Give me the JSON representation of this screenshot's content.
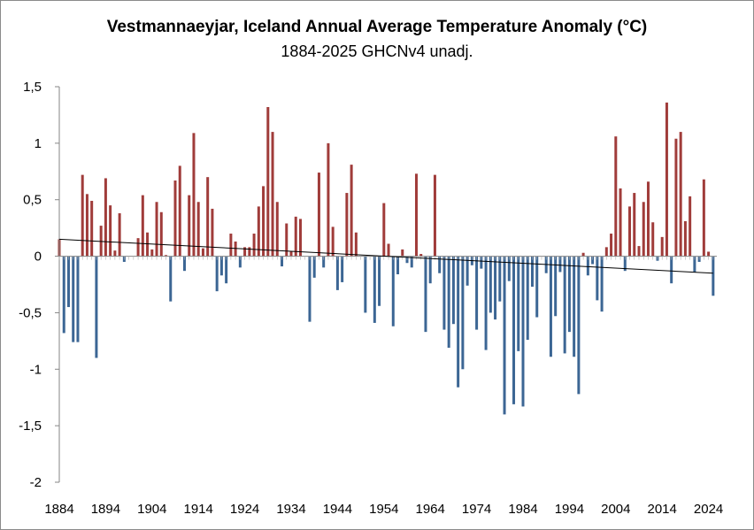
{
  "chart_data": {
    "type": "bar",
    "title": "Vestmannaeyjar, Iceland Annual Average Temperature Anomaly (°C)",
    "subtitle": "1884-2025 GHCNv4 unadj.",
    "xlabel": "",
    "ylabel": "",
    "ylim": [
      -2,
      1.5
    ],
    "y_ticks": [
      1.5,
      1,
      0.5,
      0,
      -0.5,
      -1,
      -1.5,
      -2
    ],
    "y_tick_labels": [
      "1,5",
      "1",
      "0,5",
      "0",
      "-0,5",
      "-1",
      "-1,5",
      "-2"
    ],
    "x_tick_years": [
      1884,
      1894,
      1904,
      1914,
      1924,
      1934,
      1944,
      1954,
      1964,
      1974,
      1984,
      1994,
      2004,
      2014,
      2024
    ],
    "x_tick_labels": [
      "1884",
      "1894",
      "1904",
      "1914",
      "1924",
      "1934",
      "1944",
      "1954",
      "1964",
      "1974",
      "1984",
      "1994",
      "2004",
      "2014",
      "2024"
    ],
    "grid": false,
    "legend": "none",
    "positive_color": "#a03c3a",
    "negative_color": "#3c6694",
    "trend_color": "#000000",
    "trend": {
      "start_year": 1884,
      "start_value": 0.15,
      "end_year": 2025,
      "end_value": -0.15
    },
    "series": [
      {
        "name": "Annual Average Temperature Anomaly",
        "start_year": 1884,
        "values": [
          0.15,
          -0.68,
          -0.45,
          -0.76,
          -0.76,
          0.72,
          0.55,
          0.49,
          -0.9,
          0.27,
          0.69,
          0.45,
          0.05,
          0.38,
          -0.05,
          0.0,
          0.0,
          0.16,
          0.54,
          0.21,
          0.06,
          0.48,
          0.39,
          0.01,
          -0.4,
          0.67,
          0.8,
          -0.13,
          0.54,
          1.09,
          0.48,
          0.07,
          0.7,
          0.42,
          -0.31,
          -0.17,
          -0.24,
          0.2,
          0.13,
          -0.1,
          0.08,
          0.08,
          0.2,
          0.44,
          0.62,
          1.32,
          1.1,
          0.48,
          -0.09,
          0.29,
          0.04,
          0.35,
          0.33,
          0.0,
          -0.58,
          -0.19,
          0.74,
          -0.1,
          1.0,
          0.26,
          -0.3,
          -0.23,
          0.56,
          0.81,
          0.21,
          0.0,
          -0.5,
          0.0,
          -0.59,
          -0.44,
          0.47,
          0.11,
          -0.62,
          -0.16,
          0.06,
          -0.06,
          -0.1,
          0.73,
          0.02,
          -0.67,
          -0.24,
          0.72,
          -0.15,
          -0.65,
          -0.81,
          -0.6,
          -1.16,
          -1.0,
          -0.26,
          -0.08,
          -0.65,
          -0.11,
          -0.83,
          -0.5,
          -0.56,
          -0.4,
          -1.4,
          -0.22,
          -1.31,
          -0.84,
          -1.33,
          -0.74,
          -0.27,
          -0.54,
          0.0,
          -0.15,
          -0.89,
          -0.53,
          -0.14,
          -0.86,
          -0.67,
          -0.89,
          -1.22,
          0.03,
          -0.17,
          -0.07,
          -0.39,
          -0.49,
          0.08,
          0.2,
          1.06,
          0.6,
          -0.13,
          0.44,
          0.56,
          0.09,
          0.48,
          0.66,
          0.3,
          -0.04,
          0.17,
          1.36,
          -0.24,
          1.04,
          1.1,
          0.31,
          0.53,
          -0.14,
          -0.05,
          0.68,
          0.04,
          -0.35
        ]
      }
    ]
  }
}
